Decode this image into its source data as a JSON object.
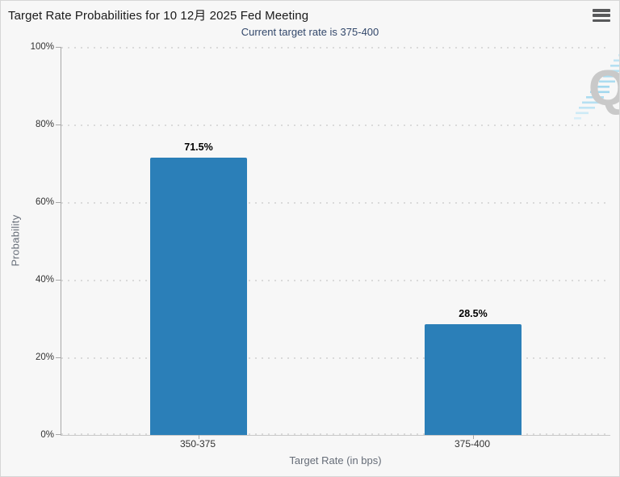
{
  "header": {
    "menu_icon": "hamburger-menu"
  },
  "chart_data": {
    "type": "bar",
    "title": "Target Rate Probabilities for 10 12月 2025 Fed Meeting",
    "subtitle": "Current target rate is 375-400",
    "categories": [
      "350-375",
      "375-400"
    ],
    "values": [
      71.5,
      28.5
    ],
    "data_labels": [
      "71.5%",
      "28.5%"
    ],
    "xlabel": "Target Rate (in bps)",
    "ylabel": "Probability",
    "ylim": [
      0,
      100
    ],
    "y_tick_values": [
      0,
      20,
      40,
      60,
      80,
      100
    ],
    "y_tick_labels": [
      "0%",
      "20%",
      "40%",
      "60%",
      "80%",
      "100%"
    ],
    "grid": "horizontal-dotted",
    "legend": "none",
    "watermark": "Q",
    "colors": {
      "bar": "#2b7fb8",
      "title_text": "#1a1a1a",
      "subtitle_text": "#33486b",
      "axis_text": "#333333",
      "axis_title_text": "#666d78",
      "gridline": "#dadada",
      "axis_line": "#a8a8a8",
      "background": "#f7f7f7",
      "watermark_q": "#c9c9c9",
      "watermark_dash": "#b5e0f2"
    }
  }
}
